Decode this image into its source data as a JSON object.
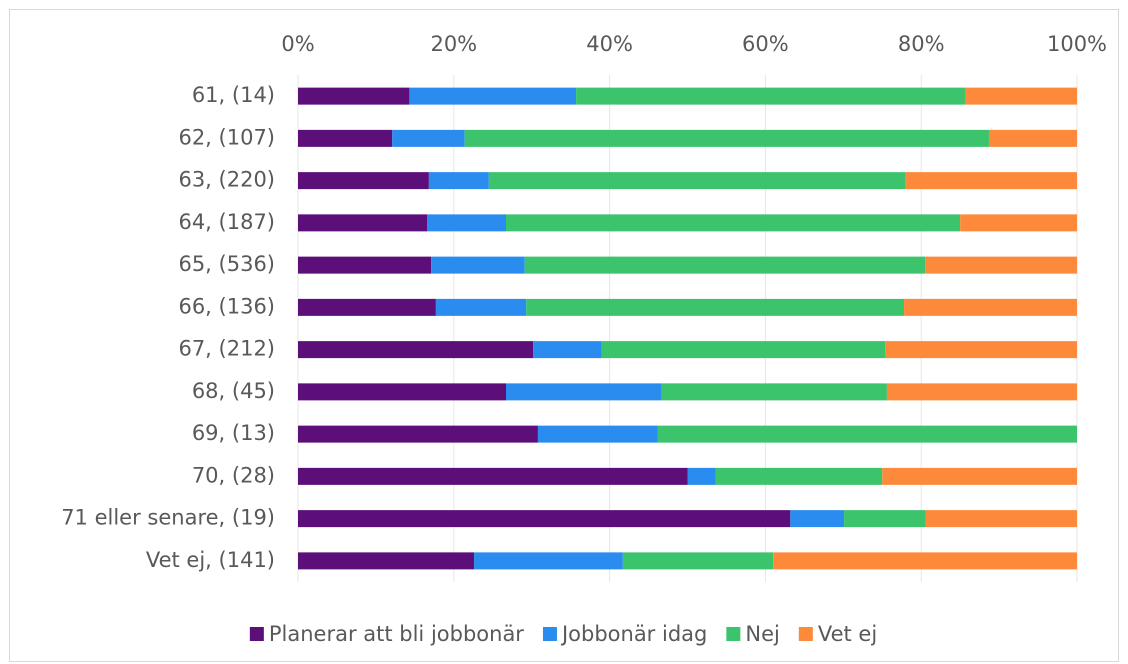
{
  "chart_data": {
    "type": "stacked-barh",
    "categories": [
      "61,   (14)",
      "62, (107)",
      "63, (220)",
      "64, (187)",
      "65, (536)",
      "66, (136)",
      "67, (212)",
      "68, (45)",
      "69, (13)",
      "70, (28)",
      "71 eller senare, (19)",
      "Vet ej, (141)"
    ],
    "series": [
      {
        "name": "Planerar att bli jobbonär",
        "color": "#5c0f78",
        "values": [
          14.3,
          12.1,
          16.8,
          16.6,
          17.1,
          17.7,
          30.2,
          26.7,
          30.8,
          50.0,
          63.2,
          22.6
        ]
      },
      {
        "name": "Jobbonär idag",
        "color": "#2b8cf0",
        "values": [
          21.4,
          9.3,
          7.7,
          10.1,
          12.0,
          11.6,
          8.8,
          20.0,
          15.4,
          3.6,
          6.9,
          19.1
        ]
      },
      {
        "name": "Nej",
        "color": "#3cc46c",
        "values": [
          50.0,
          67.3,
          53.5,
          58.3,
          51.4,
          48.5,
          36.4,
          28.9,
          53.8,
          21.4,
          10.5,
          19.3
        ]
      },
      {
        "name": "Vet ej",
        "color": "#fd8a3a",
        "values": [
          14.3,
          11.3,
          22.0,
          15.0,
          19.5,
          22.2,
          24.6,
          24.4,
          0,
          25.0,
          19.4,
          39.0
        ]
      }
    ],
    "xlim": [
      0,
      100
    ],
    "xticks": [
      {
        "value": 0,
        "label": "0%"
      },
      {
        "value": 20,
        "label": "20%"
      },
      {
        "value": 40,
        "label": "40%"
      },
      {
        "value": 60,
        "label": "60%"
      },
      {
        "value": 80,
        "label": "80%"
      },
      {
        "value": 100,
        "label": "100%"
      }
    ],
    "grid": true,
    "legend": "bottom"
  }
}
